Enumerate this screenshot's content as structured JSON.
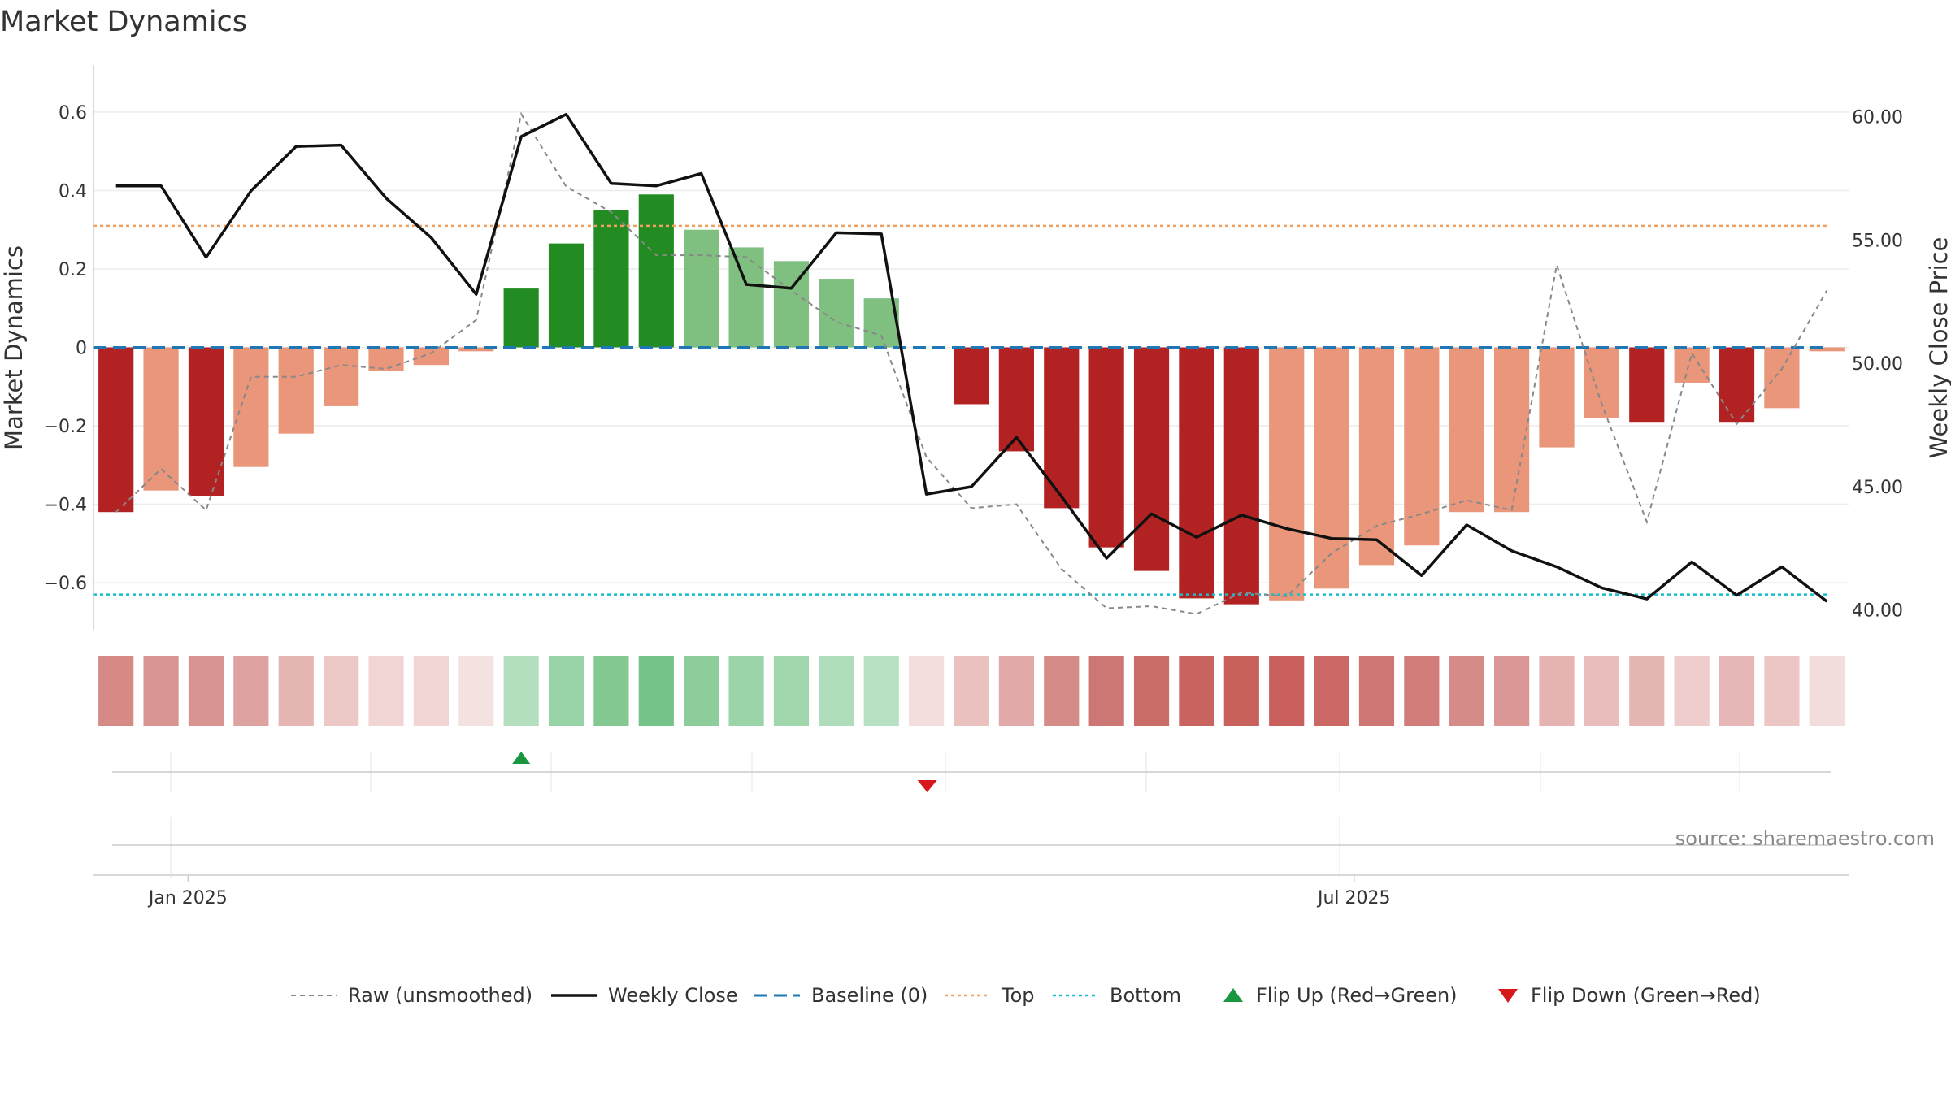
{
  "chart_data": {
    "type": "bar",
    "title": "Market Dynamics",
    "ylabel_left": "Market Dynamics",
    "ylabel_right": "Weekly Close Price",
    "source": "source: sharemaestro.com",
    "left_ylim": [
      -0.72,
      0.72
    ],
    "left_yticks": [
      0.6,
      0.4,
      0.2,
      0,
      -0.2,
      -0.4,
      -0.6
    ],
    "left_ytick_labels": [
      "0.6",
      "0.4",
      "0.2",
      "0",
      "−0.2",
      "−0.4",
      "−0.6"
    ],
    "right_ylim": [
      39.2,
      62.1
    ],
    "right_yticks": [
      60,
      55,
      50,
      45,
      40
    ],
    "right_ytick_labels": [
      "60.00",
      "55.00",
      "50.00",
      "45.00",
      "40.00"
    ],
    "x_labels": [
      {
        "week_index": 1.6,
        "label": "Jan 2025"
      },
      {
        "week_index": 27.5,
        "label": "Jul 2025"
      }
    ],
    "top_level": 0.31,
    "bottom_level": -0.63,
    "baseline": 0,
    "bar_values": [
      -0.42,
      -0.365,
      -0.38,
      -0.305,
      -0.22,
      -0.15,
      -0.06,
      -0.045,
      -0.01,
      0.15,
      0.265,
      0.35,
      0.39,
      0.3,
      0.255,
      0.22,
      0.175,
      0.125,
      0,
      -0.145,
      -0.265,
      -0.41,
      -0.51,
      -0.57,
      -0.64,
      -0.655,
      -0.645,
      -0.615,
      -0.555,
      -0.505,
      -0.42,
      -0.42,
      -0.255,
      -0.18,
      -0.19,
      -0.09,
      -0.19,
      -0.155,
      -0.01
    ],
    "bar_colors": [
      "#b22222",
      "#e9967a",
      "#b22222",
      "#e9967a",
      "#e9967a",
      "#e9967a",
      "#e9967a",
      "#e9967a",
      "#e9967a",
      "#228b22",
      "#228b22",
      "#228b22",
      "#228b22",
      "#7fbf7f",
      "#7fbf7f",
      "#7fbf7f",
      "#7fbf7f",
      "#7fbf7f",
      "#e9967a",
      "#b22222",
      "#b22222",
      "#b22222",
      "#b22222",
      "#b22222",
      "#b22222",
      "#b22222",
      "#e9967a",
      "#e9967a",
      "#e9967a",
      "#e9967a",
      "#e9967a",
      "#e9967a",
      "#e9967a",
      "#e9967a",
      "#b22222",
      "#e9967a",
      "#b22222",
      "#e9967a",
      "#e9967a"
    ],
    "raw_values": [
      -0.42,
      -0.31,
      -0.415,
      -0.075,
      -0.075,
      -0.045,
      -0.055,
      -0.015,
      0.07,
      0.595,
      0.41,
      0.345,
      0.235,
      0.235,
      0.23,
      0.145,
      0.065,
      0.03,
      -0.28,
      -0.41,
      -0.4,
      -0.565,
      -0.665,
      -0.66,
      -0.68,
      -0.625,
      -0.635,
      -0.525,
      -0.455,
      -0.425,
      -0.39,
      -0.415,
      0.21,
      -0.145,
      -0.445,
      -0.015,
      -0.195,
      -0.055,
      0.145
    ],
    "weekly_close": [
      57.2,
      57.2,
      54.3,
      57.0,
      58.8,
      58.85,
      56.7,
      55.1,
      52.8,
      59.2,
      60.1,
      57.3,
      57.2,
      57.7,
      53.2,
      53.05,
      55.3,
      55.25,
      44.7,
      45.0,
      47.0,
      44.6,
      42.1,
      43.9,
      42.95,
      43.85,
      43.3,
      42.9,
      42.85,
      41.4,
      43.45,
      42.4,
      41.75,
      40.9,
      40.45,
      41.95,
      40.6,
      41.75,
      40.35
    ],
    "heat_strip_colors": [
      "#d58a86",
      "#da9592",
      "#d99492",
      "#dea3a1",
      "#e5b6b4",
      "#ecc8c6",
      "#f1d5d4",
      "#f1d5d4",
      "#f4e2e1",
      "#b3dfbe",
      "#98d2a7",
      "#84c992",
      "#76c389",
      "#8ccd9b",
      "#9bd4a9",
      "#a0d7ad",
      "#afdcba",
      "#b8e0c3",
      "#f4dddd",
      "#ebc1c0",
      "#e1aaa8",
      "#d58b88",
      "#cd7774",
      "#ca6d69",
      "#c9635f",
      "#c8605b",
      "#c95f5c",
      "#cb6865",
      "#cd7673",
      "#d17d7a",
      "#d58b88",
      "#db9795",
      "#e5b4b2",
      "#e9bdbb",
      "#e6b6b4",
      "#efcdcc",
      "#e6b7b6",
      "#ecc6c5",
      "#f2dcdc"
    ],
    "flip_up_week": 9,
    "flip_down_week": 18,
    "legend": [
      {
        "key": "raw",
        "label": "Raw (unsmoothed)"
      },
      {
        "key": "close",
        "label": "Weekly Close"
      },
      {
        "key": "baseline",
        "label": "Baseline (0)"
      },
      {
        "key": "top",
        "label": "Top"
      },
      {
        "key": "bottom",
        "label": "Bottom"
      },
      {
        "key": "flip_up",
        "label": "Flip Up (Red→Green)"
      },
      {
        "key": "flip_down",
        "label": "Flip Down (Green→Red)"
      }
    ],
    "legend_placement": "bottom",
    "grid": true,
    "colors": {
      "strong_red": "#b22222",
      "light_red": "#e9967a",
      "strong_green": "#228b22",
      "light_green": "#7fbf7f",
      "weekly_close": "#111111",
      "raw": "#888888",
      "baseline": "#1f77b4",
      "top": "#f0a060",
      "bottom": "#17becf",
      "flip_up": "#1a9641",
      "flip_down": "#d7191c"
    }
  }
}
